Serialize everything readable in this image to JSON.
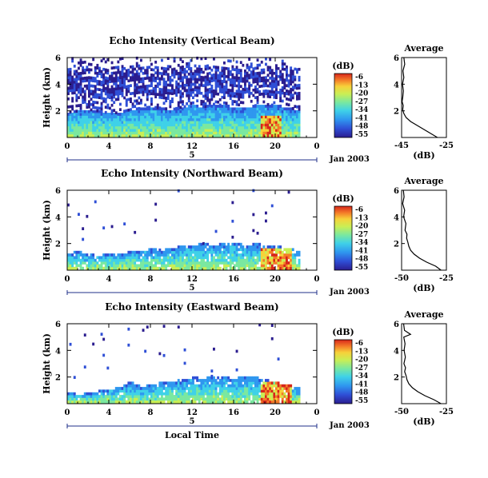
{
  "figure": {
    "xaxis_label": "Local Time",
    "date_label": "Jan 2003",
    "day_label": "5"
  },
  "colorbar": {
    "unit": "(dB)",
    "ticks": [
      "-6",
      "-13",
      "-20",
      "-27",
      "-34",
      "-41",
      "-48",
      "-55"
    ],
    "colors": [
      "#2b1d8f",
      "#2f4fd6",
      "#2f97ef",
      "#3fd1e8",
      "#7ae8a0",
      "#c9ee55",
      "#f7d23a",
      "#f47a28",
      "#d7261b"
    ]
  },
  "chart_data": [
    {
      "type": "heatmap",
      "title": "Echo Intensity (Vertical Beam)",
      "ylabel": "Height (km)",
      "xlabel": "Local Time",
      "xlim": [
        0,
        24
      ],
      "ylim": [
        0,
        6
      ],
      "xticks": [
        "0",
        "4",
        "8",
        "12",
        "16",
        "20",
        "0"
      ],
      "yticks": [
        "2",
        "4",
        "6"
      ],
      "zlim": [
        -55,
        -6
      ],
      "layer_top_km": [
        1.8,
        1.9,
        2.0,
        1.9,
        1.7,
        1.8,
        2.0,
        2.1,
        2.2,
        2.1,
        2.0,
        2.2,
        2.3,
        2.2,
        2.4,
        2.3,
        2.2,
        2.1,
        2.3,
        2.4,
        2.3,
        2.2,
        2.0,
        2.1
      ],
      "scatter_rows_km": [
        3.2,
        3.5,
        4.1,
        4.4,
        5.0
      ],
      "convective_cell": {
        "start_h": 18.5,
        "end_h": 20.5,
        "peak_dB": -6
      },
      "profile": {
        "title": "Average",
        "xlabel": "(dB)",
        "xlim": [
          -45,
          -25
        ],
        "xticks": [
          "-45",
          "-25"
        ],
        "yticks": [
          "2",
          "4",
          "6"
        ],
        "height_km": [
          0.0,
          0.3,
          0.6,
          0.9,
          1.2,
          1.5,
          1.8,
          2.1,
          2.4,
          2.7,
          3.0,
          3.5,
          4.0,
          4.5,
          5.0,
          5.5,
          6.0
        ],
        "dB": [
          -29,
          -32,
          -35,
          -38,
          -41,
          -43,
          -44,
          -44.5,
          -44.3,
          -44.8,
          -44.5,
          -44.2,
          -44.6,
          -44.0,
          -44.4,
          -43.6,
          -44.0
        ]
      }
    },
    {
      "type": "heatmap",
      "title": "Echo Intensity (Northward Beam)",
      "ylabel": "Height (km)",
      "xlabel": "Local Time",
      "xlim": [
        0,
        24
      ],
      "ylim": [
        0,
        6
      ],
      "xticks": [
        "0",
        "4",
        "8",
        "12",
        "16",
        "20",
        "0"
      ],
      "yticks": [
        "2",
        "4",
        "6"
      ],
      "zlim": [
        -55,
        -6
      ],
      "layer_top_km": [
        1.2,
        1.3,
        1.1,
        1.0,
        1.2,
        1.1,
        1.3,
        1.4,
        1.5,
        1.4,
        1.6,
        1.7,
        1.8,
        1.9,
        1.8,
        1.9,
        2.0,
        1.8,
        1.9,
        1.8,
        1.7,
        1.6,
        1.4,
        1.3
      ],
      "scatter_rows_km": [
        4.1,
        2.8
      ],
      "convective_cell": {
        "start_h": 18.5,
        "end_h": 21.5,
        "peak_dB": -6
      },
      "profile": {
        "title": "Average",
        "xlabel": "(dB)",
        "xlim": [
          -50,
          -25
        ],
        "xticks": [
          "-50",
          "-25"
        ],
        "yticks": [
          "2",
          "4",
          "6"
        ],
        "height_km": [
          0.0,
          0.3,
          0.6,
          0.9,
          1.2,
          1.5,
          1.8,
          2.1,
          2.4,
          2.7,
          3.0,
          3.5,
          4.0,
          4.5,
          5.0,
          5.5,
          6.0
        ],
        "dB": [
          -28,
          -31,
          -36,
          -40,
          -43,
          -45,
          -46,
          -46.5,
          -47.2,
          -47.0,
          -48.1,
          -47.6,
          -48.9,
          -48.3,
          -49.4,
          -48.6,
          -49.0
        ]
      }
    },
    {
      "type": "heatmap",
      "title": "Echo Intensity (Eastward Beam)",
      "ylabel": "Height (km)",
      "xlabel": "Local Time",
      "xlim": [
        0,
        24
      ],
      "ylim": [
        0,
        6
      ],
      "xticks": [
        "0",
        "4",
        "8",
        "12",
        "16",
        "20",
        "0"
      ],
      "yticks": [
        "2",
        "4",
        "6"
      ],
      "zlim": [
        -55,
        -6
      ],
      "layer_top_km": [
        0.8,
        0.6,
        0.7,
        0.9,
        1.0,
        1.1,
        1.6,
        1.2,
        1.3,
        1.5,
        1.6,
        1.7,
        1.9,
        1.8,
        2.0,
        1.9,
        1.8,
        2.0,
        1.9,
        1.7,
        1.5,
        1.3,
        1.2,
        1.1
      ],
      "scatter_rows_km": [
        3.5,
        2.6
      ],
      "convective_cell": {
        "start_h": 18.5,
        "end_h": 21.5,
        "peak_dB": -6
      },
      "profile": {
        "title": "Average",
        "xlabel": "(dB)",
        "xlim": [
          -50,
          -25
        ],
        "xticks": [
          "-50",
          "-25"
        ],
        "yticks": [
          "2",
          "4",
          "6"
        ],
        "height_km": [
          0.0,
          0.3,
          0.6,
          0.9,
          1.2,
          1.5,
          1.8,
          2.1,
          2.4,
          2.7,
          3.0,
          3.5,
          4.0,
          4.5,
          5.0,
          5.2,
          5.5,
          6.0
        ],
        "dB": [
          -28,
          -32,
          -37,
          -41,
          -44,
          -46,
          -47,
          -47.5,
          -48.3,
          -47.8,
          -48.7,
          -47.9,
          -48.6,
          -48.1,
          -48.8,
          -45.0,
          -48.4,
          -48.9
        ]
      }
    }
  ]
}
